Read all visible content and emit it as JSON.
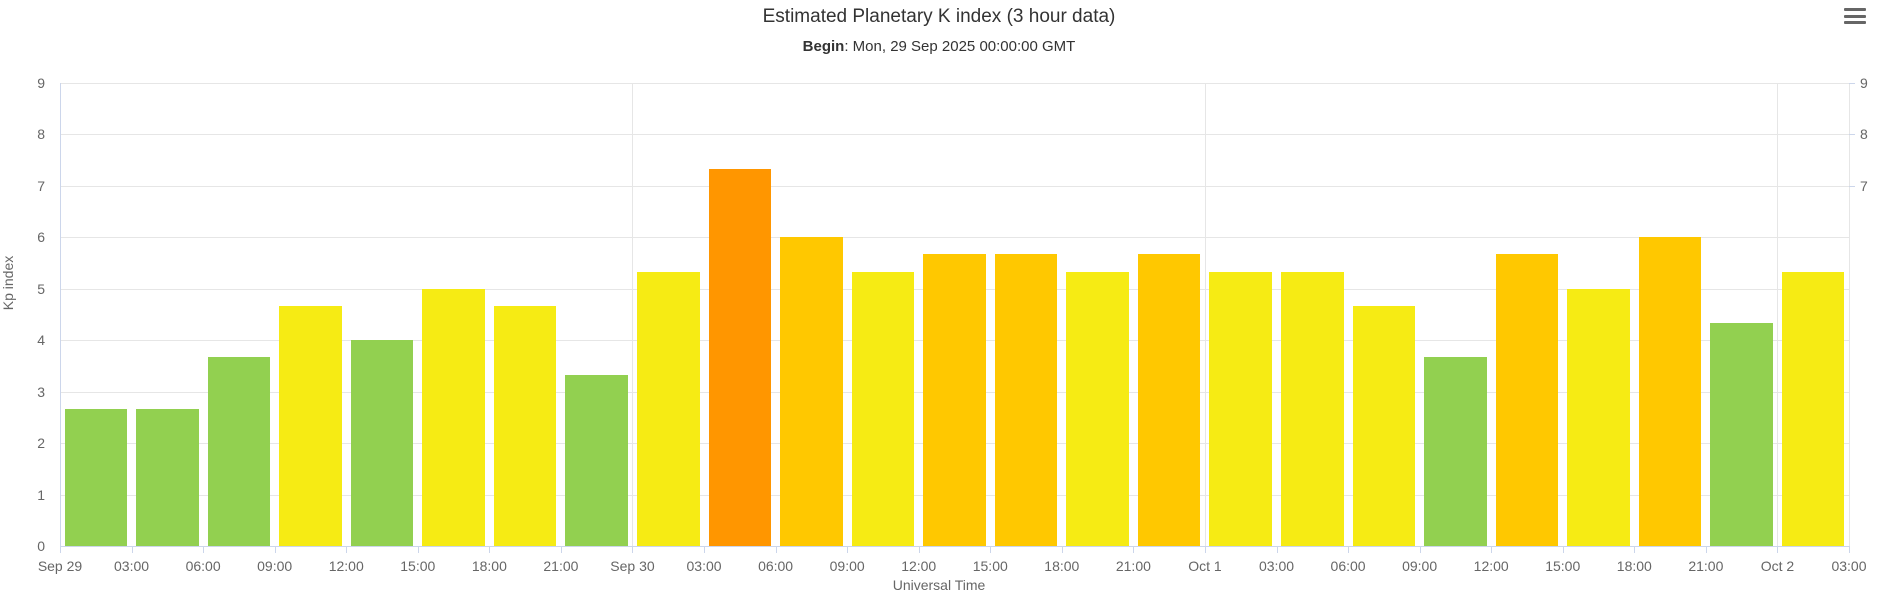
{
  "header": {
    "title": "Estimated Planetary K index (3 hour data)",
    "subtitle_prefix": "Begin",
    "subtitle_rest": ": Mon, 29 Sep 2025 00:00:00 GMT"
  },
  "menu": {
    "tooltip": "Chart context menu"
  },
  "chart_data": {
    "type": "bar",
    "title": "Estimated Planetary K index (3 hour data)",
    "subtitle": "Begin: Mon, 29 Sep 2025 00:00:00 GMT",
    "xlabel": "Universal Time",
    "ylabel": "Kp index",
    "ylim": [
      0,
      9
    ],
    "grid": true,
    "legend": "none",
    "yticks_left": [
      0,
      1,
      2,
      3,
      4,
      5,
      6,
      7,
      8,
      9
    ],
    "yticks_right": [
      7,
      8,
      9
    ],
    "x_tick_labels": [
      "Sep 29",
      "03:00",
      "06:00",
      "09:00",
      "12:00",
      "15:00",
      "18:00",
      "21:00",
      "Sep 30",
      "03:00",
      "06:00",
      "09:00",
      "12:00",
      "15:00",
      "18:00",
      "21:00",
      "Oct 1",
      "03:00",
      "06:00",
      "09:00",
      "12:00",
      "15:00",
      "18:00",
      "21:00",
      "Oct 2",
      "03:00"
    ],
    "day_boundary_gridline_ticks": [
      8,
      16,
      24,
      25
    ],
    "bar_interval_hours": 3,
    "values": [
      2.67,
      2.67,
      3.67,
      4.67,
      4.0,
      5.0,
      4.67,
      3.33,
      5.33,
      7.33,
      6.0,
      5.33,
      5.67,
      5.67,
      5.33,
      5.67,
      5.33,
      5.33,
      4.67,
      3.67,
      5.67,
      5.0,
      6.0,
      4.33,
      5.33
    ],
    "colors": {
      "green": "#92D050",
      "yellow": "#F6EB14",
      "amber": "#FFC800",
      "orange": "#FF9600"
    },
    "color_rule": "rounded Kp <=4 green, =5 yellow, =6 amber, >=7 orange",
    "style": {
      "gridline_color": "#e6e6e6",
      "axis_line_color": "#ccd6eb",
      "label_color": "#666666",
      "title_color": "#333333"
    }
  }
}
